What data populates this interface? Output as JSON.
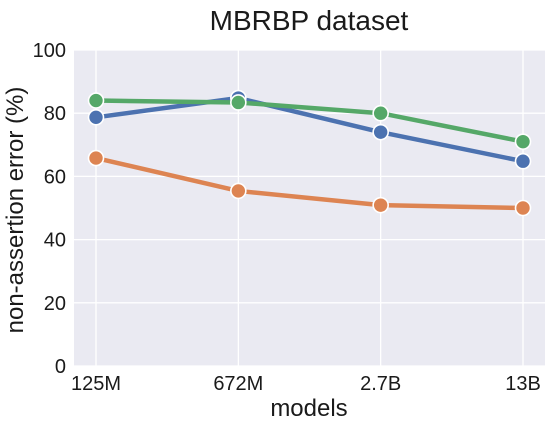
{
  "chart_data": {
    "type": "line",
    "title": "MBRBP dataset",
    "xlabel": "models",
    "ylabel": "non-assertion error (%)",
    "categories": [
      "125M",
      "672M",
      "2.7B",
      "13B"
    ],
    "ylim": [
      0,
      100
    ],
    "yticks": [
      0,
      20,
      40,
      60,
      80,
      100
    ],
    "grid": true,
    "background": "#eaeaf2",
    "series": [
      {
        "color": "#4c72b0",
        "values": [
          78.7,
          84.8,
          74.0,
          64.8
        ]
      },
      {
        "color": "#dd8452",
        "values": [
          65.8,
          55.4,
          50.9,
          50.0
        ]
      },
      {
        "color": "#55a868",
        "values": [
          84.0,
          83.4,
          80.0,
          71.0
        ]
      }
    ]
  }
}
